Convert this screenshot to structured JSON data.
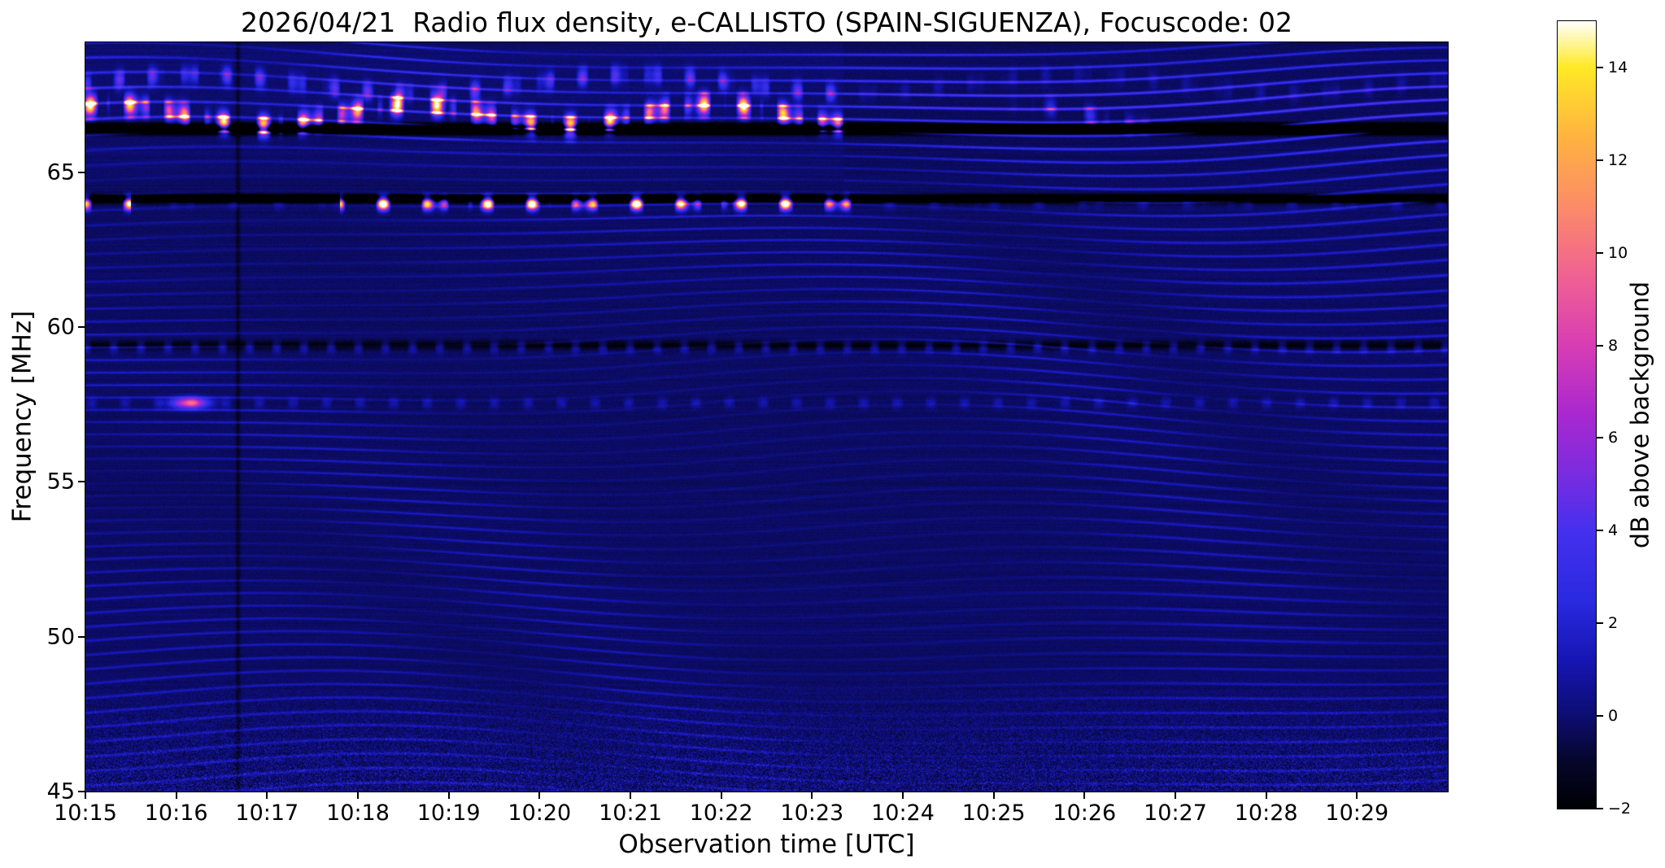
{
  "title": "2026/04/21  Radio flux density, e-CALLISTO (SPAIN-SIGUENZA), Focuscode: 02",
  "axes": {
    "xlabel": "Observation time [UTC]",
    "ylabel": "Frequency [MHz]",
    "colorbar_label": "dB above background"
  },
  "chart_data": {
    "type": "heatmap",
    "title": "2026/04/21  Radio flux density, e-CALLISTO (SPAIN-SIGUENZA), Focuscode: 02",
    "xlabel": "Observation time [UTC]",
    "ylabel": "Frequency [MHz]",
    "colorbar_label": "dB above background",
    "x_ticks": [
      "10:15",
      "10:16",
      "10:17",
      "10:18",
      "10:19",
      "10:20",
      "10:21",
      "10:22",
      "10:23",
      "10:24",
      "10:25",
      "10:26",
      "10:27",
      "10:28",
      "10:29"
    ],
    "x_range_minutes": [
      0,
      15
    ],
    "y_ticks": [
      {
        "value": 45,
        "label": "45"
      },
      {
        "value": 50,
        "label": "50"
      },
      {
        "value": 55,
        "label": "55"
      },
      {
        "value": 60,
        "label": "60"
      },
      {
        "value": 65,
        "label": "65"
      }
    ],
    "freq_range_mhz": [
      45,
      69.2
    ],
    "value_range_db": [
      -2,
      15
    ],
    "colorbar_ticks": [
      {
        "value": -2,
        "label": "−2"
      },
      {
        "value": 0,
        "label": "0"
      },
      {
        "value": 2,
        "label": "2"
      },
      {
        "value": 4,
        "label": "4"
      },
      {
        "value": 6,
        "label": "6"
      },
      {
        "value": 8,
        "label": "8"
      },
      {
        "value": 10,
        "label": "10"
      },
      {
        "value": 12,
        "label": "12"
      },
      {
        "value": 14,
        "label": "14"
      }
    ],
    "colormap_stops": [
      [
        -2.0,
        "#000004"
      ],
      [
        -1.0,
        "#06062a"
      ],
      [
        0.0,
        "#0d0d72"
      ],
      [
        1.2,
        "#1616b4"
      ],
      [
        2.5,
        "#2a2ae0"
      ],
      [
        4.0,
        "#4530ee"
      ],
      [
        5.2,
        "#7a2ce0"
      ],
      [
        6.5,
        "#a928cf"
      ],
      [
        8.0,
        "#d83db4"
      ],
      [
        9.5,
        "#f06292"
      ],
      [
        11.0,
        "#fb8c68"
      ],
      [
        12.5,
        "#ffb340"
      ],
      [
        14.0,
        "#ffe926"
      ],
      [
        15.0,
        "#ffffff"
      ]
    ],
    "features": [
      {
        "kind": "bright_burst_band",
        "freq_mhz": [
          65.5,
          68.5
        ],
        "time_utc": [
          "10:15",
          "10:23.4"
        ],
        "note": "intense drifting fringed emission, peaks >14 dB (yellow/white) over magenta"
      },
      {
        "kind": "bright_dashes",
        "freq_mhz": 64.0,
        "time_utc": [
          "10:18",
          "10:23.4"
        ],
        "note": "yellow/white dashes on dark channel"
      },
      {
        "kind": "dark_horizontal_line",
        "freq_mhz": 66.4,
        "note": "black absorption band across full duration"
      },
      {
        "kind": "dark_horizontal_line",
        "freq_mhz": 64.1,
        "note": "thin black line across full duration"
      },
      {
        "kind": "dark_horizontal_line",
        "freq_mhz": 59.4,
        "note": "faint dark line with blue dashes"
      },
      {
        "kind": "interference_fringes",
        "note": "wavy blue fringes ~0.4 MHz apart over whole spectrogram, 1-3 dB, bowing near 10:21 and 10:27"
      },
      {
        "kind": "hotspot",
        "freq_mhz": 57.5,
        "time_utc": "10:16.2",
        "note": "isolated magenta blob"
      },
      {
        "kind": "noise_speckle",
        "freq_mhz": [
          45,
          48.8
        ],
        "note": "speckled noise floor strip"
      },
      {
        "kind": "texture_change",
        "time_utc": "10:23.3",
        "note": "burst activity above 65 MHz stops; smooth wave fringes after"
      }
    ],
    "render_params": {
      "fringe_cycles_per_mhz": 2.3,
      "fringe_warp_cycles": 0.55,
      "burst_end_minute": 8.35,
      "band_center_mhz": 67.05,
      "band_sigma_mhz": 1.15,
      "dark_lines": [
        {
          "f": 66.4,
          "sigma": 0.1,
          "depth": 9.5
        },
        {
          "f": 64.15,
          "sigma": 0.08,
          "depth": 6.0
        },
        {
          "f": 59.42,
          "sigma": 0.1,
          "depth": 1.6
        }
      ],
      "burst_lines": [
        {
          "f": 66.85,
          "wander": 0.35,
          "wfreq": 1.9,
          "wphase": 1.0,
          "sigma": 0.22,
          "amp": 15
        },
        {
          "f": 67.85,
          "wander": 0.3,
          "wfreq": 1.3,
          "wphase": 0.0,
          "sigma": 0.2,
          "amp": 7
        }
      ],
      "dash64": {
        "f": 64.0,
        "sigma": 0.14,
        "amp": 13
      },
      "dash_lines": [
        {
          "f": 59.35,
          "sigma": 0.13,
          "amp": 2.6
        },
        {
          "f": 57.55,
          "sigma": 0.12,
          "amp": 2.1
        }
      ],
      "hotspot_minute": 1.15,
      "vline_minute": 1.68,
      "noise_floor_freq_mhz": 48.8
    }
  }
}
